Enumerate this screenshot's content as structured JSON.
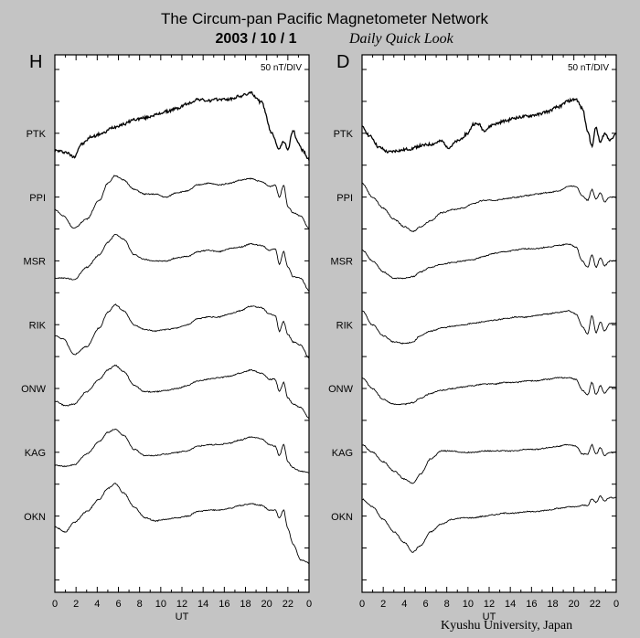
{
  "header": {
    "title": "The Circum-pan Pacific Magnetometer Network",
    "date": "2003  /  10  /   1",
    "subtitle": "Daily Quick Look",
    "credit": "Kyushu University, Japan"
  },
  "chart_data": [
    {
      "type": "line",
      "panel_label": "H",
      "scale_label": "50 nT/DIV",
      "xlabel": "UT",
      "xlim": [
        0,
        24
      ],
      "x_ticks": [
        "0",
        "2",
        "4",
        "6",
        "8",
        "10",
        "12",
        "14",
        "16",
        "18",
        "20",
        "22",
        "0"
      ],
      "stations": [
        "PTK",
        "PPI",
        "MSR",
        "RIK",
        "ONW",
        "KAG",
        "OKN"
      ],
      "grid": false,
      "series": [
        {
          "name": "PTK",
          "x": [
            0,
            1,
            1.8,
            2.5,
            3.5,
            4.5,
            5.5,
            6.5,
            7.5,
            8.5,
            9.5,
            10.5,
            11.5,
            12.5,
            13.5,
            14.5,
            15.5,
            16.5,
            17.5,
            18.5,
            19.5,
            20.5,
            21.2,
            21.6,
            22.0,
            22.5,
            22.9,
            23.4,
            24
          ],
          "y": [
            -0.55,
            -0.6,
            -0.75,
            -0.35,
            -0.1,
            0.0,
            0.2,
            0.3,
            0.45,
            0.5,
            0.6,
            0.7,
            0.8,
            0.95,
            1.1,
            1.05,
            1.1,
            1.1,
            1.2,
            1.3,
            1.0,
            0.0,
            -0.5,
            -0.25,
            -0.5,
            0.1,
            -0.25,
            -0.55,
            -0.85
          ]
        },
        {
          "name": "PPI",
          "x": [
            0,
            0.8,
            1.8,
            3,
            4.2,
            5,
            5.7,
            6.5,
            7.5,
            8.5,
            9.5,
            10.5,
            11.5,
            12.5,
            13.5,
            14.5,
            15.5,
            16.5,
            17.5,
            18.5,
            19.5,
            20.3,
            20.8,
            21.2,
            21.6,
            22.0,
            22.5,
            23.2,
            24
          ],
          "y": [
            -0.4,
            -0.6,
            -1.0,
            -0.7,
            -0.1,
            0.45,
            0.7,
            0.55,
            0.25,
            0.1,
            0.1,
            0.0,
            0.15,
            0.2,
            0.4,
            0.45,
            0.4,
            0.45,
            0.55,
            0.6,
            0.5,
            0.35,
            0.4,
            0.0,
            0.4,
            -0.3,
            -0.5,
            -0.6,
            -1.0
          ]
        },
        {
          "name": "MSR",
          "x": [
            0,
            1,
            1.8,
            3,
            4.2,
            5,
            5.7,
            6.5,
            7.5,
            8.5,
            9.5,
            10.5,
            11.5,
            12.5,
            13.5,
            14.5,
            15.5,
            16.5,
            17.5,
            18.5,
            19.5,
            20.3,
            20.8,
            21.2,
            21.6,
            22.0,
            22.5,
            23.2,
            24
          ],
          "y": [
            -0.55,
            -0.55,
            -0.6,
            -0.2,
            0.2,
            0.6,
            0.85,
            0.7,
            0.2,
            0.05,
            0.0,
            0.0,
            0.1,
            0.15,
            0.3,
            0.35,
            0.3,
            0.4,
            0.45,
            0.55,
            0.5,
            0.35,
            0.4,
            -0.1,
            0.3,
            -0.2,
            -0.5,
            -0.55,
            -0.95
          ]
        },
        {
          "name": "RIK",
          "x": [
            0,
            0.8,
            1.8,
            3,
            4.2,
            5,
            5.7,
            6.5,
            7.5,
            8.5,
            9.5,
            10.5,
            11.5,
            12.5,
            13.5,
            14.5,
            15.5,
            16.5,
            17.5,
            18.5,
            19.5,
            20.3,
            20.8,
            21.2,
            21.6,
            22.0,
            22.5,
            23.2,
            24
          ],
          "y": [
            -0.35,
            -0.45,
            -0.95,
            -0.7,
            -0.1,
            0.4,
            0.65,
            0.45,
            0.0,
            -0.15,
            -0.2,
            -0.15,
            -0.1,
            0.0,
            0.2,
            0.25,
            0.25,
            0.35,
            0.45,
            0.6,
            0.55,
            0.35,
            0.3,
            -0.2,
            0.1,
            -0.3,
            -0.55,
            -0.65,
            -1.05
          ]
        },
        {
          "name": "ONW",
          "x": [
            0,
            1,
            1.8,
            3,
            4.2,
            5,
            5.7,
            6.5,
            7.5,
            8.5,
            9.5,
            10.5,
            11.5,
            12.5,
            13.5,
            14.5,
            15.5,
            16.5,
            17.5,
            18.5,
            19.5,
            20.3,
            20.8,
            21.2,
            21.6,
            22.0,
            22.5,
            23.2,
            24
          ],
          "y": [
            -0.4,
            -0.55,
            -0.5,
            -0.1,
            0.3,
            0.6,
            0.75,
            0.55,
            0.1,
            -0.1,
            -0.1,
            -0.05,
            0.0,
            0.1,
            0.25,
            0.3,
            0.35,
            0.4,
            0.5,
            0.6,
            0.5,
            0.3,
            0.3,
            -0.1,
            0.2,
            -0.3,
            -0.5,
            -0.6,
            -0.95
          ]
        },
        {
          "name": "KAG",
          "x": [
            0,
            1,
            1.8,
            3,
            4.2,
            5,
            5.7,
            6.5,
            7.5,
            8.5,
            9.5,
            10.5,
            11.5,
            12.5,
            13.5,
            14.5,
            15.5,
            16.5,
            17.5,
            18.5,
            19.5,
            20.3,
            20.8,
            21.2,
            21.6,
            22.0,
            22.5,
            23.2,
            24
          ],
          "y": [
            -0.4,
            -0.45,
            -0.4,
            -0.05,
            0.35,
            0.65,
            0.75,
            0.55,
            0.1,
            -0.1,
            -0.1,
            -0.05,
            0.0,
            0.05,
            0.2,
            0.25,
            0.25,
            0.3,
            0.4,
            0.5,
            0.45,
            0.25,
            0.2,
            -0.1,
            0.25,
            -0.3,
            -0.5,
            -0.6,
            -0.65
          ]
        },
        {
          "name": "OKN",
          "x": [
            0,
            1,
            1.8,
            3,
            4.2,
            5,
            5.7,
            6.5,
            7.5,
            8.5,
            9.5,
            10.5,
            11.5,
            12.5,
            13.5,
            14.5,
            15.5,
            16.5,
            17.5,
            18.5,
            19.5,
            20.3,
            20.8,
            21.2,
            21.6,
            22.0,
            22.5,
            23.2,
            24
          ],
          "y": [
            -0.35,
            -0.5,
            -0.2,
            0.15,
            0.55,
            0.9,
            1.05,
            0.75,
            0.3,
            -0.05,
            -0.15,
            -0.1,
            -0.05,
            0.0,
            0.15,
            0.2,
            0.2,
            0.25,
            0.35,
            0.4,
            0.35,
            0.2,
            0.2,
            -0.05,
            0.2,
            -0.4,
            -0.9,
            -1.4,
            -1.5
          ]
        }
      ]
    },
    {
      "type": "line",
      "panel_label": "D",
      "scale_label": "50 nT/DIV",
      "xlabel": "UT",
      "xlim": [
        0,
        24
      ],
      "x_ticks": [
        "0",
        "2",
        "4",
        "6",
        "8",
        "10",
        "12",
        "14",
        "16",
        "18",
        "20",
        "22",
        "0"
      ],
      "stations": [
        "PTK",
        "PPI",
        "MSR",
        "RIK",
        "ONW",
        "KAG",
        "OKN"
      ],
      "grid": false,
      "series": [
        {
          "name": "PTK",
          "x": [
            0,
            0.8,
            1.6,
            2.5,
            3.5,
            4.5,
            5.5,
            6.5,
            7.5,
            8.2,
            9,
            10,
            10.5,
            11,
            11.5,
            12.5,
            13.5,
            14.5,
            15.5,
            16.5,
            17.5,
            18.5,
            19.5,
            20.2,
            20.8,
            21.3,
            21.7,
            22.1,
            22.5,
            22.9,
            23.4,
            24
          ],
          "y": [
            0.2,
            -0.1,
            -0.45,
            -0.6,
            -0.55,
            -0.5,
            -0.4,
            -0.35,
            -0.25,
            -0.45,
            -0.25,
            0.0,
            0.3,
            0.3,
            0.1,
            0.3,
            0.4,
            0.5,
            0.55,
            0.6,
            0.7,
            0.85,
            1.05,
            1.1,
            0.8,
            0.1,
            -0.4,
            0.2,
            -0.3,
            0.0,
            -0.2,
            0.0
          ]
        },
        {
          "name": "PPI",
          "x": [
            0,
            1,
            2,
            3,
            4,
            4.8,
            5.5,
            6.5,
            7.5,
            8.5,
            9.5,
            10.5,
            11.5,
            12.5,
            13.5,
            14.5,
            15.5,
            16.5,
            17.5,
            18.5,
            19.5,
            20.2,
            20.8,
            21.3,
            21.7,
            22.1,
            22.5,
            22.9,
            23.4,
            24
          ],
          "y": [
            0.45,
            0.0,
            -0.35,
            -0.7,
            -0.95,
            -1.1,
            -0.95,
            -0.75,
            -0.5,
            -0.4,
            -0.35,
            -0.2,
            -0.1,
            -0.1,
            -0.05,
            0.0,
            0.05,
            0.1,
            0.15,
            0.2,
            0.35,
            0.35,
            0.05,
            -0.1,
            0.25,
            -0.05,
            0.15,
            -0.15,
            0.0,
            0.0
          ]
        },
        {
          "name": "MSR",
          "x": [
            0,
            1,
            2,
            3,
            4,
            4.8,
            5.5,
            6.5,
            7.5,
            8.5,
            9.5,
            10.5,
            11.5,
            12.5,
            13.5,
            14.5,
            15.5,
            16.5,
            17.5,
            18.5,
            19.5,
            20.2,
            20.8,
            21.3,
            21.7,
            22.1,
            22.5,
            22.9,
            23.4,
            24
          ],
          "y": [
            0.35,
            0.0,
            -0.35,
            -0.55,
            -0.55,
            -0.5,
            -0.35,
            -0.2,
            -0.1,
            -0.05,
            0.0,
            0.05,
            0.15,
            0.25,
            0.3,
            0.35,
            0.4,
            0.4,
            0.45,
            0.5,
            0.55,
            0.45,
            0.0,
            -0.2,
            0.2,
            -0.2,
            0.1,
            -0.15,
            0.0,
            0.0
          ]
        },
        {
          "name": "RIK",
          "x": [
            0,
            1,
            2,
            3,
            4,
            4.8,
            5.5,
            6.5,
            7.5,
            8.5,
            9.5,
            10.5,
            11.5,
            12.5,
            13.5,
            14.5,
            15.5,
            16.5,
            17.5,
            18.5,
            19.5,
            20.2,
            20.8,
            21.3,
            21.7,
            22.1,
            22.5,
            22.9,
            23.4,
            24
          ],
          "y": [
            0.45,
            0.0,
            -0.35,
            -0.55,
            -0.6,
            -0.55,
            -0.35,
            -0.2,
            -0.1,
            -0.05,
            0.0,
            0.05,
            0.1,
            0.15,
            0.2,
            0.25,
            0.25,
            0.3,
            0.35,
            0.4,
            0.45,
            0.35,
            -0.05,
            -0.3,
            0.3,
            -0.25,
            0.1,
            -0.2,
            0.05,
            0.05
          ]
        },
        {
          "name": "ONW",
          "x": [
            0,
            1,
            2,
            3,
            4,
            4.8,
            5.5,
            6.5,
            7.5,
            8.5,
            9.5,
            10.5,
            11.5,
            12.5,
            13.5,
            14.5,
            15.5,
            16.5,
            17.5,
            18.5,
            19.5,
            20.2,
            20.8,
            21.3,
            21.7,
            22.1,
            22.5,
            22.9,
            23.4,
            24
          ],
          "y": [
            0.35,
            0.0,
            -0.35,
            -0.5,
            -0.5,
            -0.45,
            -0.3,
            -0.15,
            -0.05,
            0.0,
            0.05,
            0.1,
            0.15,
            0.15,
            0.2,
            0.2,
            0.25,
            0.25,
            0.3,
            0.35,
            0.35,
            0.3,
            -0.05,
            -0.2,
            0.2,
            -0.2,
            0.1,
            -0.15,
            0.05,
            0.05
          ]
        },
        {
          "name": "KAG",
          "x": [
            0,
            1,
            2,
            3,
            4,
            4.8,
            5.5,
            6.5,
            7.5,
            8.5,
            9.5,
            10.5,
            11.5,
            12.5,
            13.5,
            14.5,
            15.5,
            16.5,
            17.5,
            18.5,
            19.5,
            20.2,
            20.8,
            21.3,
            21.7,
            22.1,
            22.5,
            22.9,
            23.4,
            24
          ],
          "y": [
            0.25,
            0.0,
            -0.3,
            -0.6,
            -0.85,
            -1.0,
            -0.7,
            -0.2,
            0.05,
            0.05,
            0.0,
            0.0,
            0.05,
            0.05,
            0.05,
            0.05,
            0.1,
            0.1,
            0.15,
            0.2,
            0.25,
            0.2,
            -0.05,
            -0.05,
            0.25,
            -0.05,
            0.15,
            -0.1,
            0.0,
            0.0
          ]
        },
        {
          "name": "OKN",
          "x": [
            0,
            1,
            2,
            3,
            4,
            4.8,
            5.5,
            6.5,
            7.5,
            8.5,
            9.5,
            10.5,
            11.5,
            12.5,
            13.5,
            14.5,
            15.5,
            16.5,
            17.5,
            18.5,
            19.5,
            20.2,
            20.8,
            21.3,
            21.7,
            22.1,
            22.5,
            22.9,
            23.4,
            24
          ],
          "y": [
            0.55,
            0.3,
            -0.1,
            -0.5,
            -0.85,
            -1.15,
            -0.95,
            -0.5,
            -0.25,
            -0.1,
            -0.05,
            -0.05,
            0.0,
            0.05,
            0.1,
            0.1,
            0.15,
            0.15,
            0.2,
            0.25,
            0.3,
            0.3,
            0.35,
            0.35,
            0.55,
            0.45,
            0.65,
            0.5,
            0.6,
            0.6
          ]
        }
      ]
    }
  ]
}
